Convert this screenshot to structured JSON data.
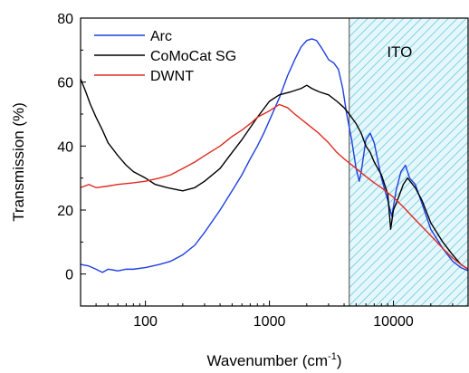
{
  "chart_data": {
    "type": "line",
    "xlabel": "Wavenumber (cm",
    "xlabel_superscript": "-1",
    "xlabel_suffix": ")",
    "ylabel": "Transmission (%)",
    "x_scale": "log",
    "xlim": [
      30,
      40000
    ],
    "ylim": [
      -10,
      80
    ],
    "x_ticks": [
      100,
      1000,
      10000
    ],
    "x_tick_labels": [
      "100",
      "1000",
      "10000"
    ],
    "y_ticks": [
      0,
      20,
      40,
      60,
      80
    ],
    "y_tick_labels": [
      "0",
      "20",
      "40",
      "60",
      "80"
    ],
    "grid": false,
    "legend_position": "top-left",
    "shaded_region": {
      "label": "ITO",
      "x_start": 4400,
      "x_end": 40000,
      "color": "#7fd3e6"
    },
    "series": [
      {
        "name": "Arc",
        "color": "#1f3fe0",
        "x": [
          30,
          35,
          40,
          45,
          50,
          60,
          70,
          80,
          100,
          130,
          160,
          200,
          250,
          300,
          400,
          500,
          600,
          700,
          800,
          900,
          1000,
          1200,
          1400,
          1600,
          1800,
          2000,
          2200,
          2400,
          2600,
          2800,
          3000,
          3300,
          3600,
          3900,
          4200,
          4600,
          5000,
          5300,
          5500,
          6000,
          6500,
          7000,
          8000,
          9000,
          9700,
          10500,
          11500,
          12500,
          13500,
          15000,
          17000,
          20000,
          25000,
          30000,
          35000,
          40000
        ],
        "y": [
          3,
          2.5,
          1.5,
          0.5,
          1.5,
          1,
          1.5,
          1.5,
          2,
          3,
          4,
          6,
          9,
          13,
          20,
          26,
          31,
          36,
          40,
          44,
          48,
          55,
          62,
          67,
          71,
          73,
          73.5,
          73,
          71,
          69,
          67,
          66,
          64,
          58,
          50,
          42,
          33,
          29,
          32,
          42,
          44,
          41,
          30,
          23,
          18,
          26,
          32,
          34,
          30,
          28,
          22,
          14,
          8,
          4,
          2,
          1
        ]
      },
      {
        "name": "CoMoCat SG",
        "color": "#000000",
        "x": [
          30,
          33,
          36,
          40,
          45,
          50,
          60,
          70,
          80,
          100,
          120,
          150,
          200,
          250,
          300,
          400,
          500,
          600,
          800,
          1000,
          1200,
          1500,
          1800,
          2000,
          2200,
          2500,
          3000,
          3500,
          4000,
          4400,
          5000,
          5500,
          6000,
          6500,
          7000,
          8000,
          9000,
          9500,
          10000,
          11000,
          12000,
          13000,
          15000,
          17000,
          20000,
          25000,
          30000,
          35000,
          40000
        ],
        "y": [
          61,
          57,
          53,
          49,
          45,
          41,
          37,
          34,
          32,
          30,
          28,
          27,
          26,
          27,
          29,
          33,
          38,
          42,
          49,
          54,
          56,
          57,
          58,
          59,
          58,
          57,
          56,
          54,
          52,
          50,
          47,
          44,
          40,
          38,
          35,
          31,
          25,
          14,
          20,
          24,
          28,
          30,
          27,
          23,
          16,
          10,
          6,
          3,
          1.5
        ]
      },
      {
        "name": "DWNT",
        "color": "#e02a20",
        "x": [
          30,
          35,
          40,
          50,
          60,
          80,
          100,
          130,
          160,
          200,
          250,
          300,
          400,
          500,
          600,
          700,
          800,
          1000,
          1200,
          1400,
          1600,
          2000,
          2500,
          3000,
          3500,
          4000,
          5000,
          6000,
          7000,
          8000,
          10000,
          12000,
          15000,
          20000,
          25000,
          30000,
          35000,
          40000
        ],
        "y": [
          27,
          28,
          27,
          27.5,
          28,
          28.5,
          29,
          30,
          31,
          33,
          35,
          37,
          40,
          43,
          45,
          47,
          49,
          51,
          53,
          52,
          50,
          47,
          44,
          41,
          38,
          36,
          33,
          30.5,
          28.5,
          27,
          24,
          21,
          17,
          12,
          8,
          5,
          3,
          1.5
        ]
      }
    ]
  }
}
